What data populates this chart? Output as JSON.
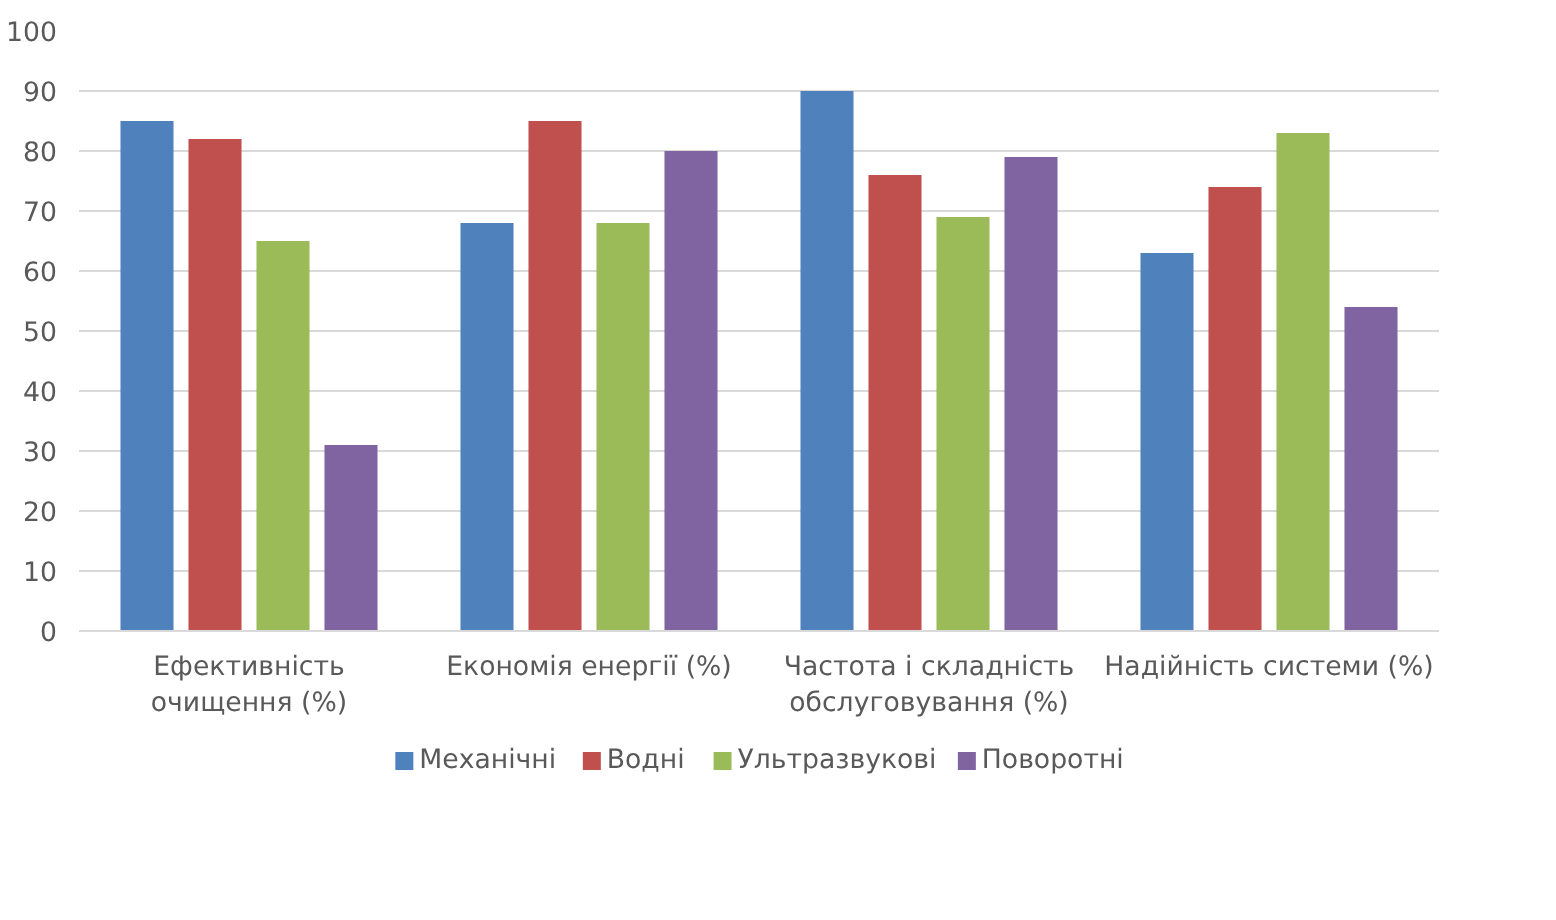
{
  "chart_data": {
    "type": "bar",
    "categories": [
      "Ефективність\nочищення (%)",
      "Економія енергії (%)",
      "Частота і складність\nобслуговування (%)",
      "Надійність системи (%)"
    ],
    "series": [
      {
        "name": "Механічні",
        "color": "#4f81bd",
        "values": [
          85,
          68,
          90,
          63
        ]
      },
      {
        "name": "Водні",
        "color": "#c0504d",
        "values": [
          82,
          85,
          76,
          74
        ]
      },
      {
        "name": "Ультразвукові",
        "color": "#9bbb59",
        "values": [
          65,
          68,
          69,
          83
        ]
      },
      {
        "name": "Поворотні",
        "color": "#8064a2",
        "values": [
          31,
          80,
          79,
          54
        ]
      }
    ],
    "ylim": [
      0,
      100
    ],
    "yticks": [
      0,
      10,
      20,
      30,
      40,
      50,
      60,
      70,
      80,
      90,
      100
    ],
    "grid": "y",
    "legend": "bottom"
  }
}
